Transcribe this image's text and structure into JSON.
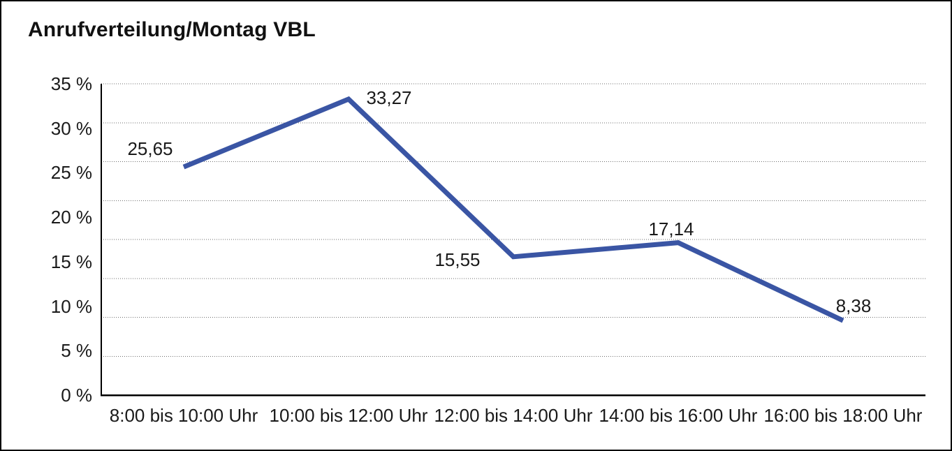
{
  "page": {
    "background_color": "#ffffff",
    "border_color": "#000000"
  },
  "title": "Anrufverteilung/Montag VBL",
  "chart_data": {
    "type": "line",
    "title": "Anrufverteilung/Montag VBL",
    "categories": [
      "8:00 bis 10:00 Uhr",
      "10:00 bis 12:00 Uhr",
      "12:00 bis 14:00 Uhr",
      "14:00 bis 16:00 Uhr",
      "16:00 bis 18:00 Uhr"
    ],
    "series": [
      {
        "name": "Anrufverteilung Montag VBL",
        "values": [
          25.65,
          33.27,
          15.55,
          17.14,
          8.38
        ]
      }
    ],
    "point_labels": [
      "25,65",
      "33,27",
      "15,55",
      "17,14",
      "8,38"
    ],
    "y_ticks": [
      {
        "value": 35,
        "label": "35 %"
      },
      {
        "value": 30,
        "label": "30 %"
      },
      {
        "value": 25,
        "label": "25 %"
      },
      {
        "value": 20,
        "label": "20 %"
      },
      {
        "value": 15,
        "label": "15 %"
      },
      {
        "value": 10,
        "label": "10 %"
      },
      {
        "value": 5,
        "label": "5 %"
      },
      {
        "value": 0,
        "label": "0 %"
      }
    ],
    "ylim": [
      0,
      35
    ],
    "xlabel": "",
    "ylabel": "",
    "legend": "none",
    "grid": {
      "horizontal": "dotted",
      "vertical": "none",
      "horizontal_line_count": 8
    },
    "colors": {
      "line": "#3A55A4",
      "axis": "#000000",
      "grid": "#6e6e6e",
      "text": "#1a1a1a"
    }
  }
}
